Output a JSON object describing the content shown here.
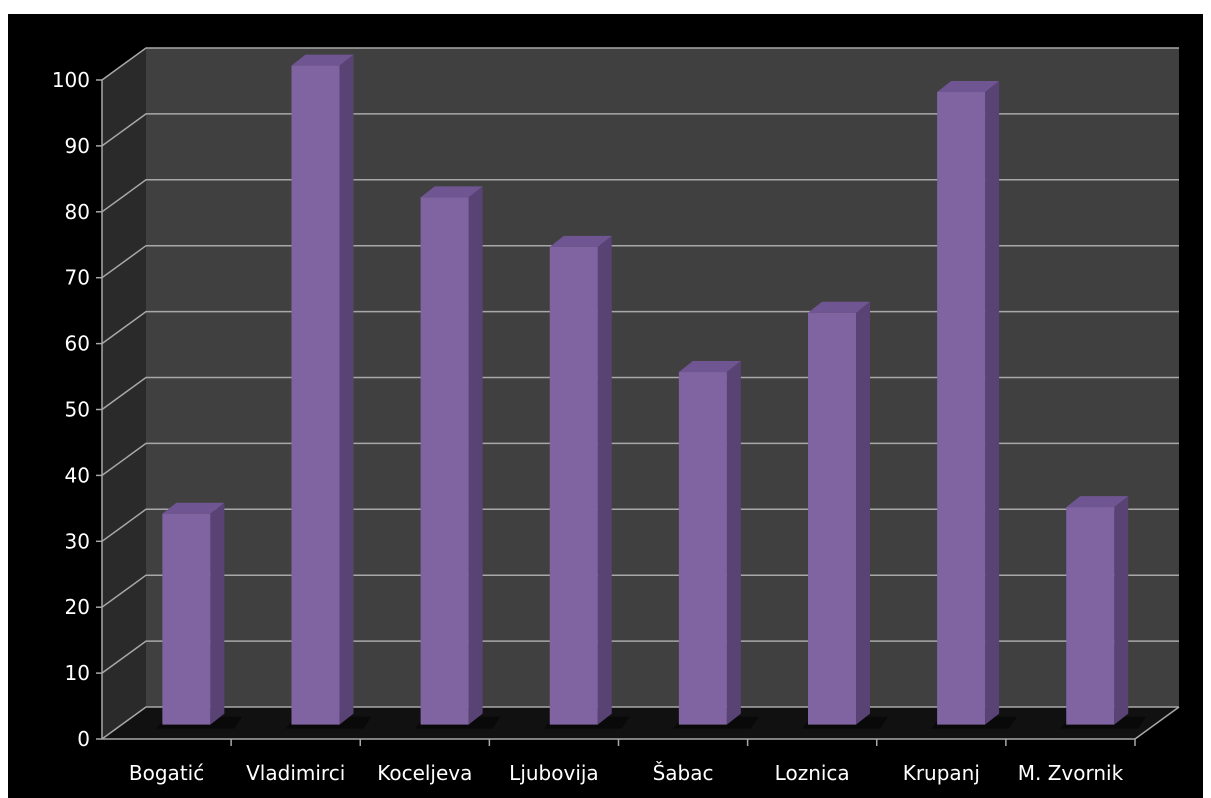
{
  "chart_data": {
    "type": "bar",
    "title": "",
    "xlabel": "",
    "ylabel": "",
    "categories": [
      "Bogatić",
      "Vladimirci",
      "Koceljeva",
      "Ljubovija",
      "Šabac",
      "Loznica",
      "Krupanj",
      "M. Zvornik"
    ],
    "values": [
      32,
      100,
      80,
      72.5,
      53.5,
      62.5,
      96,
      33
    ],
    "ylim": [
      0,
      100
    ],
    "yticks": [
      0,
      10,
      20,
      30,
      40,
      50,
      60,
      70,
      80,
      90,
      100
    ],
    "grid": true,
    "three_d": true,
    "colors": {
      "bar_front": "#8064A2",
      "bar_side": "#584374",
      "bar_top": "#6F5591",
      "back_wall": "#404040",
      "side_wall": "#2a2a2a",
      "floor": "#111111",
      "gridline": "#a8a8a8",
      "background": "#000000",
      "text": "#ffffff"
    }
  }
}
